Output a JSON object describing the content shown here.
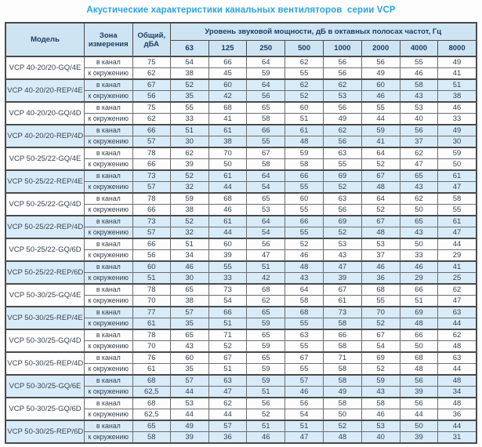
{
  "title": "Акустические характеристики канальных вентиляторов  серии VCP",
  "colors": {
    "title_accent": "#2aa4dd",
    "header_bg": "#cee4f2",
    "header_text": "#1c3e67",
    "shaded_row_bg": "#d8ebf8",
    "border_dark": "#4b4b4b",
    "data_text": "#37424e"
  },
  "table": {
    "header": {
      "model": "Модель",
      "zone": "Зона\nизмерения",
      "total": "Общий,\nдБА",
      "spl": "Уровень звуковой мощности, дБ в октавных полосах частот, Гц"
    },
    "frequencies": [
      "63",
      "125",
      "250",
      "500",
      "1000",
      "2000",
      "4000",
      "8000"
    ],
    "groups": [
      {
        "model": "VCP 40-20/20-GQ/4E",
        "shaded": false,
        "rows": [
          {
            "zone": "в канал",
            "total": "75",
            "bands": [
              54,
              66,
              64,
              62,
              56,
              56,
              55,
              49
            ]
          },
          {
            "zone": "к окружению",
            "total": "62",
            "bands": [
              38,
              45,
              59,
              55,
              56,
              49,
              46,
              41
            ]
          }
        ]
      },
      {
        "model": "VCP 40-20/20-REP/4E",
        "shaded": true,
        "rows": [
          {
            "zone": "в канал",
            "total": "67",
            "bands": [
              52,
              60,
              64,
              62,
              62,
              60,
              58,
              51
            ]
          },
          {
            "zone": "к окружению",
            "total": "56",
            "bands": [
              35,
              42,
              56,
              52,
              53,
              46,
              43,
              38
            ]
          }
        ]
      },
      {
        "model": "VCP 40-20/20-GQ/4D",
        "shaded": false,
        "rows": [
          {
            "zone": "в канал",
            "total": "75",
            "bands": [
              55,
              68,
              65,
              60,
              56,
              55,
              53,
              46
            ]
          },
          {
            "zone": "к окружению",
            "total": "62",
            "bands": [
              33,
              41,
              58,
              51,
              49,
              44,
              40,
              33
            ]
          }
        ]
      },
      {
        "model": "VCP 40-20/20-REP/4D",
        "shaded": true,
        "rows": [
          {
            "zone": "в канал",
            "total": "66",
            "bands": [
              51,
              61,
              66,
              61,
              62,
              59,
              56,
              49
            ]
          },
          {
            "zone": "к окружению",
            "total": "57",
            "bands": [
              30,
              38,
              55,
              48,
              56,
              41,
              37,
              30
            ]
          }
        ]
      },
      {
        "model": "VCP 50-25/22-GQ/4E",
        "shaded": false,
        "rows": [
          {
            "zone": "в канал",
            "total": "78",
            "bands": [
              62,
              70,
              67,
              59,
              63,
              64,
              62,
              59
            ]
          },
          {
            "zone": "к окружению",
            "total": "66",
            "bands": [
              39,
              50,
              58,
              58,
              55,
              52,
              47,
              50
            ]
          }
        ]
      },
      {
        "model": "VCP 50-25/22-REP/4E",
        "shaded": true,
        "rows": [
          {
            "zone": "в канал",
            "total": "73",
            "bands": [
              52,
              61,
              64,
              66,
              69,
              67,
              65,
              61
            ]
          },
          {
            "zone": "к окружению",
            "total": "57",
            "bands": [
              32,
              44,
              54,
              55,
              52,
              48,
              43,
              47
            ]
          }
        ]
      },
      {
        "model": "VCP 50-25/22-GQ/4D",
        "shaded": false,
        "rows": [
          {
            "zone": "в канал",
            "total": "78",
            "bands": [
              59,
              68,
              65,
              60,
              63,
              64,
              62,
              58
            ]
          },
          {
            "zone": "к окружению",
            "total": "66",
            "bands": [
              38,
              46,
              53,
              55,
              56,
              52,
              50,
              55
            ]
          }
        ]
      },
      {
        "model": "VCP 50-25/22-REP/4D",
        "shaded": true,
        "rows": [
          {
            "zone": "в канал",
            "total": "73",
            "bands": [
              52,
              61,
              64,
              66,
              69,
              67,
              65,
              61
            ]
          },
          {
            "zone": "к окружению",
            "total": "57",
            "bands": [
              32,
              44,
              54,
              55,
              52,
              48,
              43,
              47
            ]
          }
        ]
      },
      {
        "model": "VCP 50-25/22-GQ/6D",
        "shaded": false,
        "rows": [
          {
            "zone": "в канал",
            "total": "66",
            "bands": [
              51,
              60,
              56,
              52,
              53,
              53,
              50,
              44
            ]
          },
          {
            "zone": "к окружению",
            "total": "56",
            "bands": [
              34,
              39,
              47,
              46,
              43,
              37,
              33,
              29
            ]
          }
        ]
      },
      {
        "model": "VCP 50-25/22-REP/6D",
        "shaded": true,
        "rows": [
          {
            "zone": "в канал",
            "total": "60",
            "bands": [
              46,
              55,
              51,
              48,
              47,
              46,
              46,
              41
            ]
          },
          {
            "zone": "к окружению",
            "total": "51",
            "bands": [
              30,
              33,
              42,
              43,
              39,
              36,
              29,
              25
            ]
          }
        ]
      },
      {
        "model": "VCP 50-30/25-GQ/4E",
        "shaded": false,
        "rows": [
          {
            "zone": "в канал",
            "total": "78",
            "bands": [
              65,
              73,
              68,
              64,
              67,
              68,
              66,
              62
            ]
          },
          {
            "zone": "к окружению",
            "total": "70",
            "bands": [
              38,
              54,
              62,
              58,
              61,
              55,
              51,
              47
            ]
          }
        ]
      },
      {
        "model": "VCP 50-30/25-REP/4E",
        "shaded": true,
        "rows": [
          {
            "zone": "в канал",
            "total": "77",
            "bands": [
              57,
              66,
              65,
              68,
              73,
              70,
              69,
              63
            ]
          },
          {
            "zone": "к окружению",
            "total": "61",
            "bands": [
              35,
              51,
              59,
              55,
              58,
              52,
              48,
              44
            ]
          }
        ]
      },
      {
        "model": "VCP 50-30/25-GQ/4D",
        "shaded": false,
        "rows": [
          {
            "zone": "в канал",
            "total": "78",
            "bands": [
              65,
              71,
              65,
              63,
              66,
              67,
              66,
              62
            ]
          },
          {
            "zone": "к окружению",
            "total": "70",
            "bands": [
              43,
              52,
              59,
              55,
              58,
              54,
              50,
              48
            ]
          }
        ]
      },
      {
        "model": "VCP 50-30/25-REP/4D",
        "shaded": false,
        "rows": [
          {
            "zone": "в канал",
            "total": "76",
            "bands": [
              60,
              67,
              65,
              67,
              71,
              69,
              68,
              63
            ]
          },
          {
            "zone": "к окружению",
            "total": "61",
            "bands": [
              35,
              51,
              59,
              55,
              58,
              52,
              48,
              44
            ]
          }
        ]
      },
      {
        "model": "VCP 50-30/25-GQ/6E",
        "shaded": true,
        "rows": [
          {
            "zone": "в канал",
            "total": "68",
            "bands": [
              57,
              63,
              59,
              57,
              58,
              59,
              56,
              48
            ]
          },
          {
            "zone": "к окружению",
            "total": "62,5",
            "bands": [
              44,
              47,
              51,
              46,
              49,
              43,
              39,
              34
            ]
          }
        ]
      },
      {
        "model": "VCP 50-30/25-GQ/6D",
        "shaded": false,
        "rows": [
          {
            "zone": "в канал",
            "total": "68",
            "bands": [
              53,
              62,
              56,
              56,
              58,
              58,
              56,
              48
            ]
          },
          {
            "zone": "к окружению",
            "total": "62,5",
            "bands": [
              44,
              44,
              52,
              54,
              50,
              46,
              44,
              36
            ]
          }
        ]
      },
      {
        "model": "VCP 50-30/25-REP/6D",
        "shaded": true,
        "rows": [
          {
            "zone": "в канал",
            "total": "65",
            "bands": [
              49,
              57,
              51,
              51,
              52,
              53,
              50,
              44
            ]
          },
          {
            "zone": "к окружению",
            "total": "58",
            "bands": [
              39,
              36,
              46,
              47,
              48,
              40,
              39,
              31
            ]
          }
        ]
      }
    ]
  }
}
